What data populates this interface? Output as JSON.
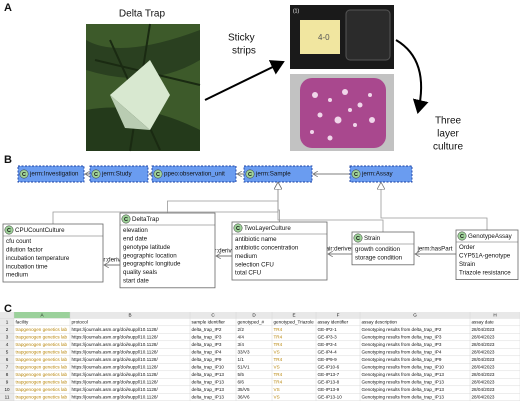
{
  "panel_a": {
    "label": "A",
    "trap_title": "Delta Trap",
    "arrow_label_1": "Sticky",
    "arrow_label_2": "strips",
    "plate_tag": "(1)",
    "plate_note": "4-0",
    "result_label_1": "Three",
    "result_label_2": "layer",
    "result_label_3": "culture"
  },
  "panel_b": {
    "label": "B",
    "class_icon": "C",
    "top_nodes": [
      "jerm:Investigation",
      "jerm:Study",
      "ppeo:observation_unit",
      "jerm:Sample",
      "jerm:Assay"
    ],
    "classes": [
      {
        "name": "CPUCountCulture",
        "attributes": [
          "cfu count",
          "dilution factor",
          "incubation temperature",
          "incubation time",
          "medium"
        ]
      },
      {
        "name": "DeltaTrap",
        "attributes": [
          "elevation",
          "end date",
          "genotype latitude",
          "geographic location",
          "geographic longitude",
          "quality seals",
          "start date"
        ]
      },
      {
        "name": "TwoLayerCulture",
        "attributes": [
          "antibiotic name",
          "antibiotic concentration",
          "medium",
          "selection CFU",
          "total CFU"
        ]
      },
      {
        "name": "Strain",
        "attributes": [
          "growth condition",
          "storage condition"
        ]
      },
      {
        "name": "GenotypeAssay",
        "attributes": [
          "Order",
          "CYP51A-genotype",
          "Strain",
          "Triazole resistance"
        ]
      }
    ],
    "edge_labels": [
      "fair:derives",
      "fair:derives",
      "fair:derives",
      "jerm:hasPart"
    ]
  },
  "panel_c": {
    "label": "C",
    "columns": [
      "A",
      "B",
      "C",
      "D",
      "E",
      "F",
      "G",
      "H"
    ],
    "header_row_number": "1",
    "headers": [
      "facility",
      "protocol",
      "sample identifier",
      "genotyped_#",
      "genotyped_Triazole",
      "assay identifier",
      "assay description",
      "assay date"
    ],
    "rows": [
      {
        "n": "2",
        "cells": [
          "trapgenogen genetics lab",
          "https://journals.asm.org/doi/suppl/10.1128/",
          "delta_trap_IP2",
          "2/2",
          "TR4",
          "GE-IP2-1",
          "Genotyping results from delta_trap_IP2",
          "28/04/2023"
        ]
      },
      {
        "n": "3",
        "cells": [
          "trapgenogen genetics lab",
          "https://journals.asm.org/doi/suppl/10.1128/",
          "delta_trap_IP3",
          "4/4",
          "TR4",
          "GE-IP3-3",
          "Genotyping results from delta_trap_IP3",
          "28/04/2023"
        ]
      },
      {
        "n": "4",
        "cells": [
          "trapgenogen genetics lab",
          "https://journals.asm.org/doi/suppl/10.1128/",
          "delta_trap_IP3",
          "3/4",
          "TR4",
          "GE-IP3-4",
          "Genotyping results from delta_trap_IP3",
          "28/04/2023"
        ]
      },
      {
        "n": "5",
        "cells": [
          "trapgenogen genetics lab",
          "https://journals.asm.org/doi/suppl/10.1128/",
          "delta_trap_IP4",
          "33/V3",
          "VS",
          "GE-IP4-4",
          "Genotyping results from delta_trap_IP4",
          "28/04/2023"
        ]
      },
      {
        "n": "6",
        "cells": [
          "trapgenogen genetics lab",
          "https://journals.asm.org/doi/suppl/10.1128/",
          "delta_trap_IP9",
          "1/1",
          "TR4",
          "GE-IP9-9",
          "Genotyping results from delta_trap_IP9",
          "28/04/2023"
        ]
      },
      {
        "n": "7",
        "cells": [
          "trapgenogen genetics lab",
          "https://journals.asm.org/doi/suppl/10.1128/",
          "delta_trap_IP10",
          "51/V1",
          "VS",
          "GE-IP10-6",
          "Genotyping results from delta_trap_IP10",
          "28/04/2023"
        ]
      },
      {
        "n": "8",
        "cells": [
          "trapgenogen genetics lab",
          "https://journals.asm.org/doi/suppl/10.1128/",
          "delta_trap_IP13",
          "5/5",
          "TR4",
          "GE-IP13-7",
          "Genotyping results from delta_trap_IP13",
          "28/04/2023"
        ]
      },
      {
        "n": "9",
        "cells": [
          "trapgenogen genetics lab",
          "https://journals.asm.org/doi/suppl/10.1128/",
          "delta_trap_IP13",
          "6/6",
          "TR4",
          "GE-IP13-8",
          "Genotyping results from delta_trap_IP13",
          "28/04/2023"
        ]
      },
      {
        "n": "10",
        "cells": [
          "trapgenogen genetics lab",
          "https://journals.asm.org/doi/suppl/10.1128/",
          "delta_trap_IP13",
          "35/V5",
          "VS",
          "GE-IP13-9",
          "Genotyping results from delta_trap_IP13",
          "28/04/2023"
        ]
      },
      {
        "n": "11",
        "cells": [
          "trapgenogen genetics lab",
          "https://journals.asm.org/doi/suppl/10.1128/",
          "delta_trap_IP13",
          "36/V6",
          "VS",
          "GE-IP13-10",
          "Genotyping results from delta_trap_IP13",
          "28/04/2023"
        ]
      }
    ]
  }
}
